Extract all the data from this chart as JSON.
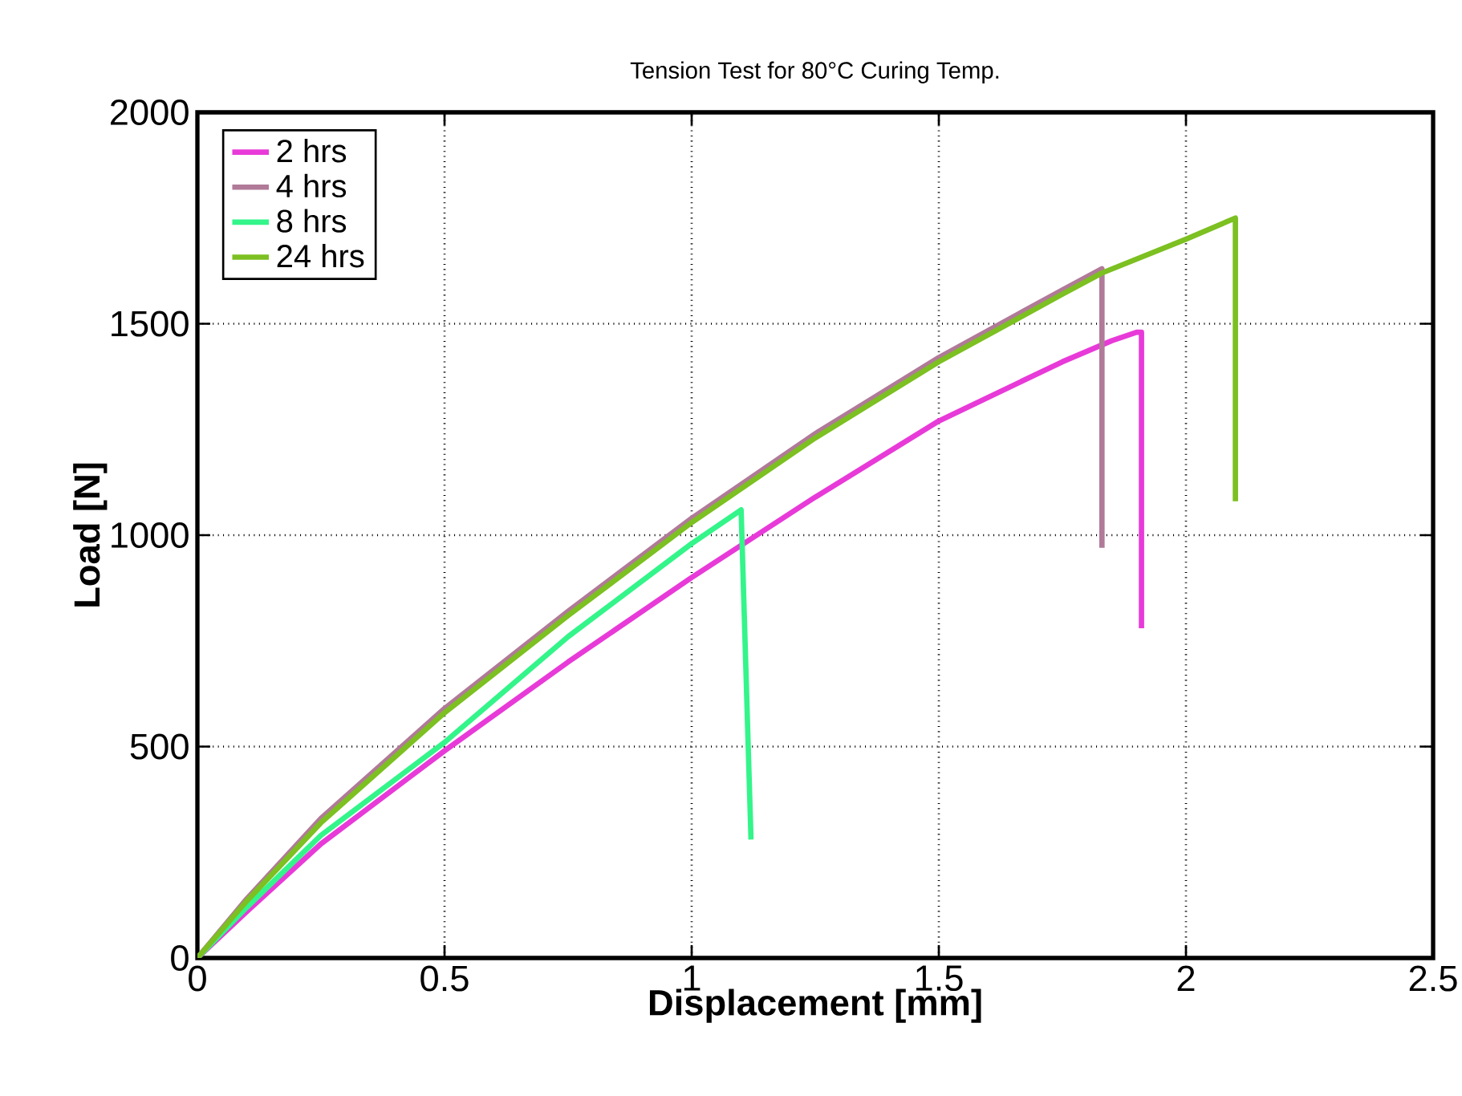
{
  "chart_data": {
    "type": "line",
    "title": "Tension Test for 80°C Curing Temp.",
    "xlabel": "Displacement [mm]",
    "ylabel": "Load [N]",
    "xlim": [
      0,
      2.5
    ],
    "ylim": [
      0,
      2000
    ],
    "xticks": [
      0,
      0.5,
      1,
      1.5,
      2,
      2.5
    ],
    "yticks": [
      0,
      500,
      1000,
      1500,
      2000
    ],
    "grid": true,
    "legend": "top left",
    "line_style": "solid",
    "series": [
      {
        "name": "2 hrs",
        "color": "#e83ad8",
        "x": [
          0,
          0.1,
          0.25,
          0.5,
          0.75,
          1.0,
          1.25,
          1.5,
          1.75,
          1.85,
          1.9,
          1.91,
          1.91
        ],
        "values": [
          0,
          110,
          270,
          490,
          700,
          900,
          1090,
          1270,
          1410,
          1460,
          1480,
          1480,
          780
        ]
      },
      {
        "name": "4 hrs",
        "color": "#b07a98",
        "x": [
          0,
          0.1,
          0.25,
          0.5,
          0.75,
          1.0,
          1.25,
          1.5,
          1.75,
          1.83,
          1.83
        ],
        "values": [
          0,
          140,
          330,
          590,
          820,
          1040,
          1240,
          1420,
          1580,
          1630,
          970
        ]
      },
      {
        "name": "8 hrs",
        "color": "#33f58a",
        "x": [
          0,
          0.1,
          0.25,
          0.5,
          0.75,
          1.0,
          1.1,
          1.12
        ],
        "values": [
          0,
          120,
          290,
          510,
          760,
          980,
          1060,
          280
        ]
      },
      {
        "name": "24 hrs",
        "color": "#7cc021",
        "x": [
          0,
          0.1,
          0.25,
          0.5,
          0.75,
          1.0,
          1.25,
          1.5,
          1.75,
          1.83,
          2.0,
          2.1,
          2.1
        ],
        "values": [
          0,
          135,
          320,
          580,
          810,
          1030,
          1230,
          1410,
          1570,
          1620,
          1700,
          1750,
          1080
        ]
      }
    ]
  }
}
